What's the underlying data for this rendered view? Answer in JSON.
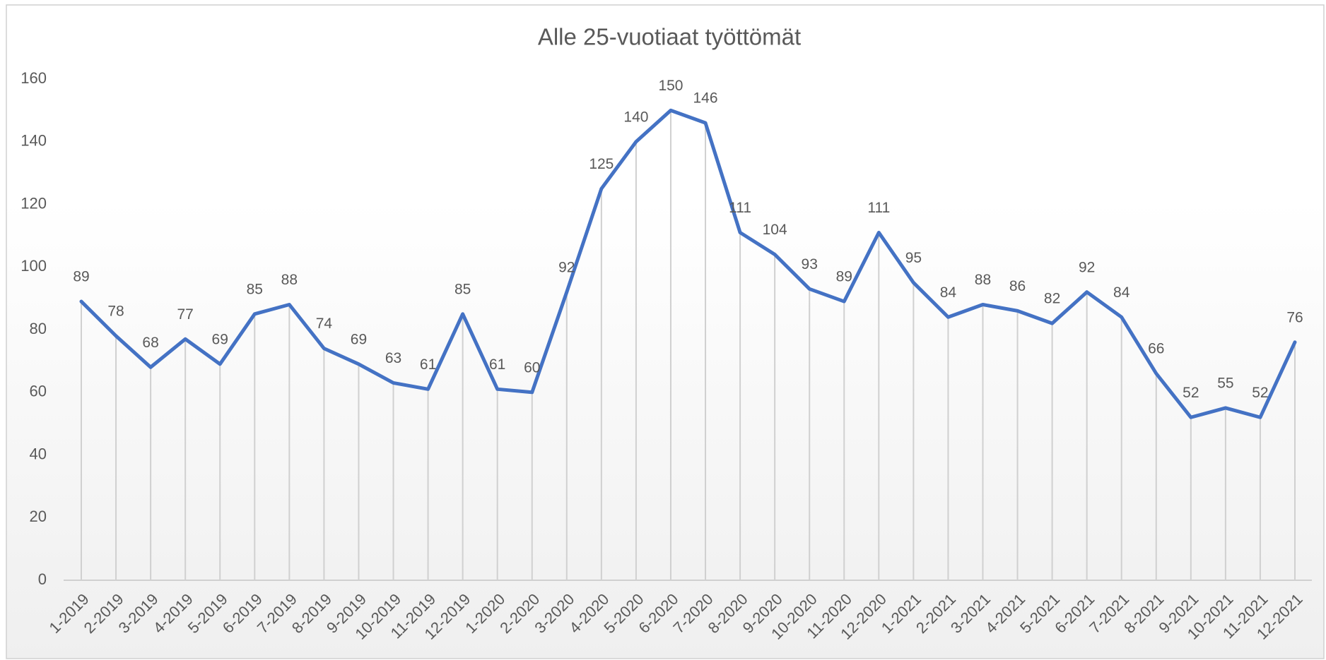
{
  "chart_data": {
    "type": "line",
    "title": "Alle 25-vuotiaat työttömät",
    "categories": [
      "1-2019",
      "2-2019",
      "3-2019",
      "4-2019",
      "5-2019",
      "6-2019",
      "7-2019",
      "8-2019",
      "9-2019",
      "10-2019",
      "11-2019",
      "12-2019",
      "1-2020",
      "2-2020",
      "3-2020",
      "4-2020",
      "5-2020",
      "6-2020",
      "7-2020",
      "8-2020",
      "9-2020",
      "10-2020",
      "11-2020",
      "12-2020",
      "1-2021",
      "2-2021",
      "3-2021",
      "4-2021",
      "5-2021",
      "6-2021",
      "7-2021",
      "8-2021",
      "9-2021",
      "10-2021",
      "11-2021",
      "12-2021"
    ],
    "values": [
      89,
      78,
      68,
      77,
      69,
      85,
      88,
      74,
      69,
      63,
      61,
      85,
      61,
      60,
      92,
      125,
      140,
      150,
      146,
      111,
      104,
      93,
      89,
      111,
      95,
      84,
      88,
      86,
      82,
      92,
      84,
      66,
      52,
      55,
      52,
      76
    ],
    "color": "#4472c4",
    "ylim": [
      0,
      160
    ],
    "yticks": [
      0,
      20,
      40,
      60,
      80,
      100,
      120,
      140,
      160
    ],
    "drop_lines": true,
    "grid": false
  }
}
